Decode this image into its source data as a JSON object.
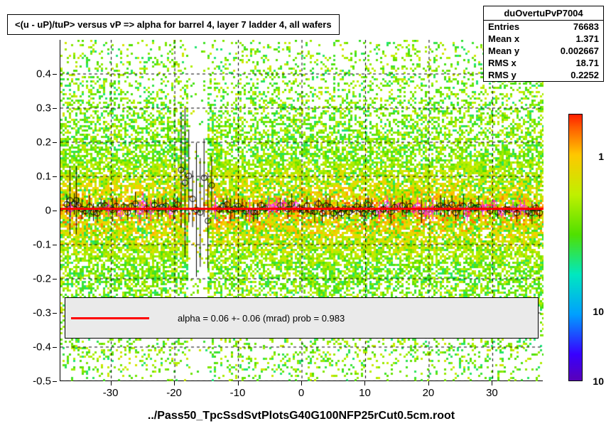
{
  "title": "<(u - uP)/tuP> versus   vP => alpha for barrel 4, layer 7 ladder 4, all wafers",
  "stats": {
    "hname": "duOvertuPvP7004",
    "entries": "76683",
    "mean_x_label": "Mean x",
    "mean_x": "1.371",
    "mean_y_label": "Mean y",
    "mean_y": "0.002667",
    "rms_x_label": "RMS x",
    "rms_x": "18.71",
    "rms_y_label": "RMS y",
    "rms_y": "0.2252",
    "entries_label": "Entries"
  },
  "chart": {
    "type": "heatmap-profile",
    "xlim": [
      -38,
      38
    ],
    "ylim": [
      -0.5,
      0.5
    ],
    "xtick_step": 10,
    "xticks": [
      -30,
      -20,
      -10,
      0,
      10,
      20,
      30
    ],
    "yticks": [
      -0.5,
      -0.4,
      -0.3,
      -0.2,
      -0.1,
      0,
      0.1,
      0.2,
      0.3,
      0.4
    ],
    "background_color": "#ffffff",
    "grid_color": "#000000",
    "grid_style": "dashed",
    "heatmap": {
      "gap_x_range": [
        -18,
        -15
      ],
      "density_seed": 42,
      "palette": [
        {
          "stop": 0.0,
          "color": "#5a00b8"
        },
        {
          "stop": 0.1,
          "color": "#3800ff"
        },
        {
          "stop": 0.25,
          "color": "#00a0ff"
        },
        {
          "stop": 0.4,
          "color": "#00e8c0"
        },
        {
          "stop": 0.55,
          "color": "#50e000"
        },
        {
          "stop": 0.7,
          "color": "#c0f000"
        },
        {
          "stop": 0.85,
          "color": "#ffc800"
        },
        {
          "stop": 0.95,
          "color": "#ff6000"
        },
        {
          "stop": 1.0,
          "color": "#ff2000"
        }
      ]
    },
    "fit_line": {
      "y": 0.006,
      "color": "#ff0000",
      "width": 3
    },
    "profile_markers": {
      "color": "#000000",
      "secondary_color": "#ff00ff",
      "style": "open-circle",
      "size": 4
    },
    "colorbar": {
      "labels": [
        "1",
        "10",
        "10"
      ],
      "positions": [
        0.16,
        0.74,
        1.0
      ]
    }
  },
  "legend": {
    "text": "alpha =    0.06 +-  0.06 (mrad) prob = 0.983",
    "box_top_y": -0.255,
    "box_bottom_y": -0.375
  },
  "x_axis_label": "../Pass50_TpcSsdSvtPlotsG40G100NFP25rCut0.5cm.root"
}
